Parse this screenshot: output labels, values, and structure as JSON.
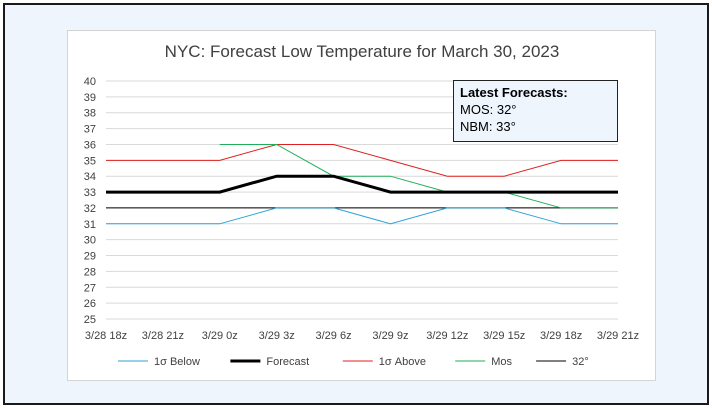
{
  "chart_data": {
    "type": "line",
    "title": "NYC: Forecast Low Temperature for March 30, 2023",
    "categories": [
      "3/28 18z",
      "3/28 21z",
      "3/29 0z",
      "3/29 3z",
      "3/29 6z",
      "3/29 9z",
      "3/29 12z",
      "3/29 15z",
      "3/29 18z",
      "3/29 21z"
    ],
    "ylim": [
      25,
      40
    ],
    "yticks": [
      25,
      26,
      27,
      28,
      29,
      30,
      31,
      32,
      33,
      34,
      35,
      36,
      37,
      38,
      39,
      40
    ],
    "grid": true,
    "legend_position": "bottom",
    "series": [
      {
        "name": "1σ Below",
        "color": "#2ea3d6",
        "width": 1,
        "values": [
          31,
          31,
          31,
          32,
          32,
          31,
          32,
          32,
          31,
          31
        ]
      },
      {
        "name": "Forecast",
        "color": "#000000",
        "width": 3,
        "values": [
          33,
          33,
          33,
          34,
          34,
          33,
          33,
          33,
          33,
          33
        ]
      },
      {
        "name": "1σ Above",
        "color": "#e02020",
        "width": 1,
        "values": [
          35,
          35,
          35,
          36,
          36,
          35,
          34,
          34,
          35,
          35
        ]
      },
      {
        "name": "Mos",
        "color": "#1fae5a",
        "width": 1,
        "values": [
          null,
          null,
          36,
          36,
          34,
          34,
          33,
          33,
          32,
          32
        ]
      },
      {
        "name": "32°",
        "color": "#000000",
        "width": 1,
        "values": [
          32,
          32,
          32,
          32,
          32,
          32,
          32,
          32,
          32,
          32
        ]
      }
    ],
    "annotation": {
      "heading": "Latest Forecasts:",
      "lines": [
        "MOS: 32°",
        "NBM: 33°"
      ]
    }
  }
}
